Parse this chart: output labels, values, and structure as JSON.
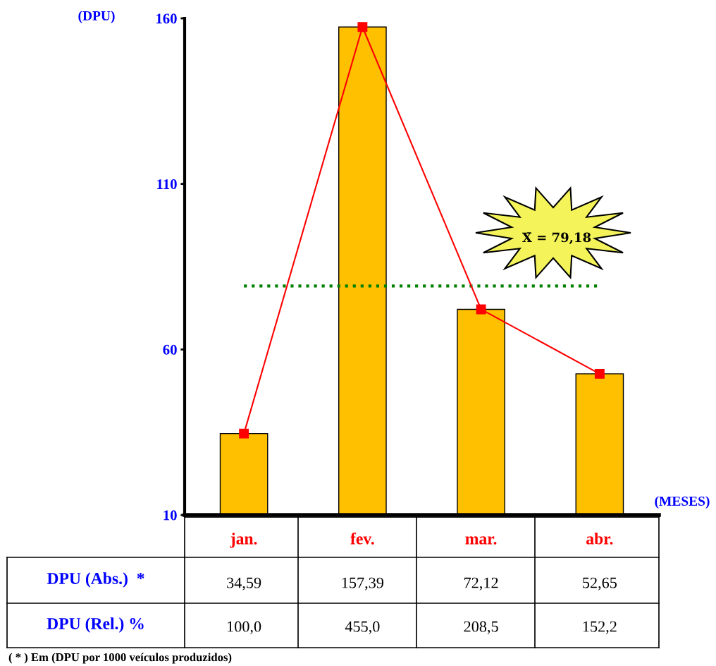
{
  "chart_data": {
    "type": "bar",
    "xlabel": "(MESES)",
    "ylabel": "(DPU)",
    "categories": [
      "jan.",
      "fev.",
      "mar.",
      "abr."
    ],
    "series": [
      {
        "color": "#ffc000",
        "values": [
          34.59,
          157.39,
          72.12,
          52.65
        ],
        "value_labels": [
          "34,59",
          "157,39",
          "72,12",
          "52,65"
        ]
      },
      {
        "type": "line",
        "color": "#ff0000",
        "marker": "square",
        "line_style": "solid",
        "values": [
          34.59,
          157.39,
          72.12,
          52.65
        ]
      }
    ],
    "ylim": [
      10,
      160
    ],
    "yticks": [
      10,
      60,
      110,
      160
    ],
    "grid": false,
    "legend": false,
    "ref_lines": [
      {
        "axis": "y",
        "value": 79.18,
        "color": "#008000",
        "line_style": "dotted"
      }
    ],
    "annotations": [
      "DPU (Abs.)  *",
      "X̄ = 79,18",
      "DPU (Rel.) %",
      "100,0",
      "455,0",
      "208,5",
      "152,2",
      "( * ) Em (DPU por 1000 veículos produzidos)"
    ]
  }
}
